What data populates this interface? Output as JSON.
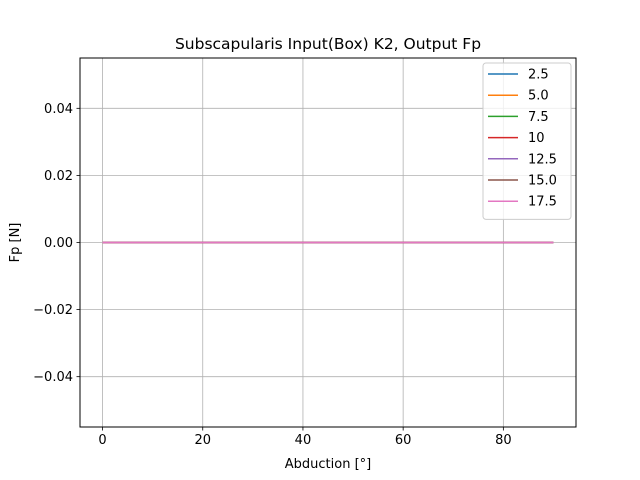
{
  "chart_data": {
    "type": "line",
    "title": "Subscapularis Input(Box) K2, Output Fp",
    "xlabel": "Abduction [°]",
    "ylabel": "Fp [N]",
    "xlim": [
      -4.5,
      94.5
    ],
    "ylim": [
      -0.055,
      0.055
    ],
    "xticks": [
      0,
      20,
      40,
      60,
      80
    ],
    "xtick_labels": [
      "0",
      "20",
      "40",
      "60",
      "80"
    ],
    "yticks": [
      -0.04,
      -0.02,
      0.0,
      0.02,
      0.04
    ],
    "ytick_labels": [
      "−0.04",
      "−0.02",
      "0.00",
      "0.02",
      "0.04"
    ],
    "grid": true,
    "legend_position": "upper right",
    "x": [
      0,
      90
    ],
    "series": [
      {
        "name": "2.5",
        "color": "#1f77b4",
        "values": [
          0,
          0
        ]
      },
      {
        "name": "5.0",
        "color": "#ff7f0e",
        "values": [
          0,
          0
        ]
      },
      {
        "name": "7.5",
        "color": "#2ca02c",
        "values": [
          0,
          0
        ]
      },
      {
        "name": "10",
        "color": "#d62728",
        "values": [
          0,
          0
        ]
      },
      {
        "name": "12.5",
        "color": "#9467bd",
        "values": [
          0,
          0
        ]
      },
      {
        "name": "15.0",
        "color": "#8c564b",
        "values": [
          0,
          0
        ]
      },
      {
        "name": "17.5",
        "color": "#e377c2",
        "values": [
          0,
          0
        ]
      }
    ]
  }
}
